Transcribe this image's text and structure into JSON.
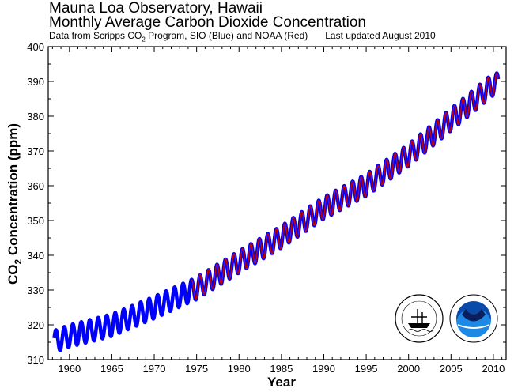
{
  "header": {
    "title_line1": "Mauna Loa Observatory, Hawaii",
    "title_line2": "Monthly Average Carbon Dioxide Concentration",
    "subtitle_prefix": "Data from Scripps CO",
    "subtitle_sub": "2",
    "subtitle_middle": " Program, SIO (Blue) and NOAA (Red)",
    "subtitle_updated": "Last updated August 2010"
  },
  "colors": {
    "scripps": "#0000ff",
    "noaa": "#cc0000",
    "axis": "#000000"
  },
  "logos": [
    "scripps-logo",
    "noaa-logo"
  ],
  "chart_data": {
    "type": "line",
    "xlabel": "Year",
    "ylabel_prefix": "CO",
    "ylabel_sub": "2",
    "ylabel_suffix": " Concentration (ppm)",
    "xlim": [
      1957.5,
      2011.5
    ],
    "ylim": [
      310,
      400
    ],
    "xticks": [
      1960,
      1965,
      1970,
      1975,
      1980,
      1985,
      1990,
      1995,
      2000,
      2005,
      2010
    ],
    "yticks": [
      310,
      320,
      330,
      340,
      350,
      360,
      370,
      380,
      390,
      400
    ],
    "grid": false,
    "series": [
      {
        "name": "Scripps CO2 Program, SIO",
        "color": "#0000ff",
        "start_year": 1958.2,
        "end_year": 2010.6,
        "trend_points": [
          [
            1958,
            315.0
          ],
          [
            1960,
            316.8
          ],
          [
            1965,
            319.9
          ],
          [
            1970,
            325.0
          ],
          [
            1975,
            330.5
          ],
          [
            1980,
            338.1
          ],
          [
            1985,
            345.3
          ],
          [
            1990,
            353.6
          ],
          [
            1995,
            360.2
          ],
          [
            2000,
            368.8
          ],
          [
            2005,
            379.0
          ],
          [
            2010,
            389.2
          ]
        ],
        "seasonal_amplitude_ppm": 3.2
      },
      {
        "name": "NOAA",
        "color": "#cc0000",
        "start_year": 1974.4,
        "end_year": 2010.6,
        "trend_points": [
          [
            1974.4,
            329.8
          ],
          [
            1980,
            338.1
          ],
          [
            1985,
            345.3
          ],
          [
            1990,
            353.6
          ],
          [
            1995,
            360.2
          ],
          [
            2000,
            368.8
          ],
          [
            2005,
            379.0
          ],
          [
            2010,
            389.2
          ]
        ],
        "seasonal_amplitude_ppm": 3.2
      }
    ]
  }
}
